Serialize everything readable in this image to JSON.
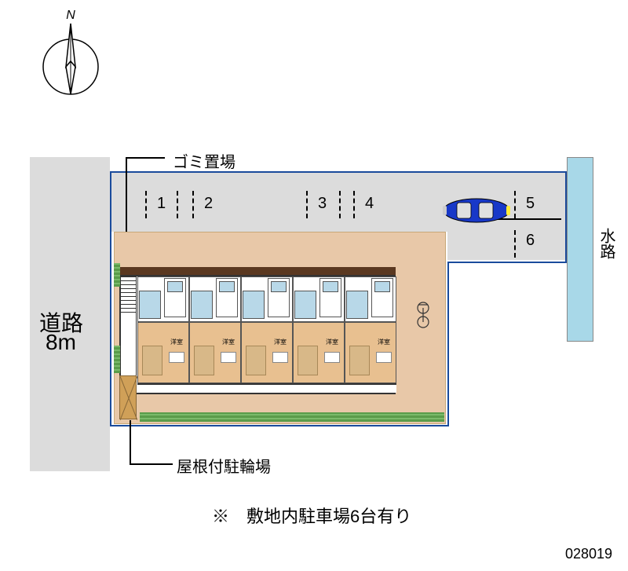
{
  "compass": {
    "north_label": "N"
  },
  "labels": {
    "road": "道路",
    "road_width": "8m",
    "garbage": "ゴミ置場",
    "bike_parking": "屋根付駐輪場",
    "waterway": "水路",
    "note": "※　敷地内駐車場6台有り",
    "id": "028019",
    "unit_room": "洋室"
  },
  "parking_spots": [
    "1",
    "2",
    "3",
    "4",
    "5",
    "6"
  ],
  "colors": {
    "road": "#dcdcdc",
    "border": "#1a4b9c",
    "waterway": "#a8d8e8",
    "bath": "#b8d8e8",
    "room": "#e8c090",
    "roof": "#5a3820",
    "green": "#5a9c4a",
    "walkway": "#e8c8a8",
    "car_body": "#1838c8",
    "car_window": "#e0e0e0"
  },
  "layout": {
    "unit_count": 5,
    "parking_count": 6
  }
}
